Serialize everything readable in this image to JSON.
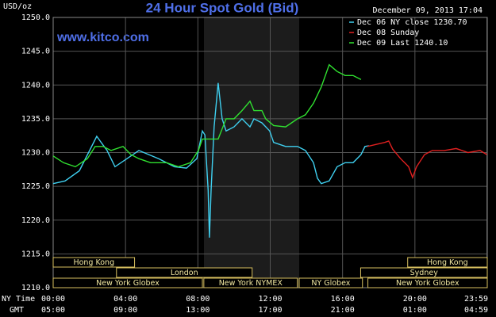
{
  "chart_data": {
    "type": "line",
    "title": "24 Hour Spot Gold (Bid)",
    "y_label": "USD/oz",
    "date": "December 09, 2013 17:04",
    "watermark": "www.kitco.com",
    "x_label": "NY Time",
    "x2_label": "GMT",
    "xlim": [
      0,
      24
    ],
    "xticks": [
      {
        "value": 0,
        "label": "00:00"
      },
      {
        "value": 4,
        "label": "04:00"
      },
      {
        "value": 8,
        "label": "08:00"
      },
      {
        "value": 12,
        "label": "12:00"
      },
      {
        "value": 16,
        "label": "16:00"
      },
      {
        "value": 20,
        "label": "20:00"
      },
      {
        "value": 23.98,
        "label": "23:59"
      }
    ],
    "x2ticks": [
      {
        "value": 0,
        "label": "05:00"
      },
      {
        "value": 4,
        "label": "09:00"
      },
      {
        "value": 8,
        "label": "13:00"
      },
      {
        "value": 12,
        "label": "17:00"
      },
      {
        "value": 16,
        "label": "21:00"
      },
      {
        "value": 20,
        "label": "01:00"
      },
      {
        "value": 23.98,
        "label": "04:59"
      }
    ],
    "ylim": [
      1210,
      1250
    ],
    "yticks": [
      {
        "value": 1210,
        "label": "1210.0"
      },
      {
        "value": 1215,
        "label": "1215.0"
      },
      {
        "value": 1220,
        "label": "1220.0"
      },
      {
        "value": 1225,
        "label": "1225.0"
      },
      {
        "value": 1230,
        "label": "1230.0"
      },
      {
        "value": 1235,
        "label": "1235.0"
      },
      {
        "value": 1240,
        "label": "1240.0"
      },
      {
        "value": 1245,
        "label": "1245.0"
      },
      {
        "value": 1250,
        "label": "1250.0"
      }
    ],
    "grid": true,
    "series": [
      {
        "name": "Dec 06 NY close 1230.70",
        "color": "#3fd0f0",
        "x": [
          0,
          0.66,
          1.45,
          2.41,
          2.98,
          3.42,
          4.08,
          4.74,
          5.83,
          6.71,
          7.37,
          7.94,
          8.25,
          8.39,
          8.57,
          8.64,
          8.73,
          8.9,
          9.12,
          9.34,
          9.56,
          10,
          10.44,
          10.88,
          11.1,
          11.54,
          11.97,
          12.19,
          12.85,
          13.51,
          13.95,
          14.39,
          14.61,
          14.82,
          15.26,
          15.7,
          16.14,
          16.58,
          17.02,
          17.24,
          17.46
        ],
        "values": [
          1225.4,
          1225.8,
          1227.3,
          1232.4,
          1230.3,
          1227.9,
          1229.1,
          1230.3,
          1229.1,
          1227.9,
          1227.7,
          1229.1,
          1233.2,
          1232.6,
          1224.4,
          1217.4,
          1224.4,
          1233.8,
          1240.3,
          1235.0,
          1233.2,
          1233.8,
          1235.0,
          1233.8,
          1235.0,
          1234.4,
          1233.2,
          1231.5,
          1230.9,
          1230.9,
          1230.3,
          1228.5,
          1226.2,
          1225.4,
          1225.8,
          1227.9,
          1228.5,
          1228.5,
          1229.7,
          1230.9,
          1231.0
        ]
      },
      {
        "name": "Dec 08 Sunday",
        "color": "#e02020",
        "x": [
          17.37,
          18.33,
          18.55,
          18.77,
          19.21,
          19.65,
          19.87,
          20.09,
          20.53,
          20.96,
          21.62,
          22.28,
          22.94,
          23.6,
          23.98
        ],
        "values": [
          1230.9,
          1231.5,
          1231.7,
          1230.5,
          1229.1,
          1227.9,
          1226.3,
          1227.9,
          1229.7,
          1230.3,
          1230.3,
          1230.6,
          1230.0,
          1230.3,
          1229.7
        ]
      },
      {
        "name": "Dec 09 Last 1240.10",
        "color": "#30e030",
        "x": [
          0,
          0.57,
          1.23,
          1.89,
          2.32,
          2.76,
          3.2,
          3.86,
          4.3,
          4.74,
          5.39,
          6.27,
          6.93,
          7.59,
          8.03,
          8.25,
          8.68,
          9.12,
          9.56,
          10,
          10.44,
          10.88,
          11.1,
          11.54,
          11.75,
          12.19,
          12.85,
          13.51,
          13.95,
          14.39,
          14.82,
          15.26,
          15.7,
          16.14,
          16.58,
          17.02
        ],
        "values": [
          1229.5,
          1228.5,
          1227.9,
          1229.1,
          1230.9,
          1230.9,
          1230.3,
          1230.9,
          1229.7,
          1229.1,
          1228.5,
          1228.5,
          1227.9,
          1228.5,
          1230.3,
          1232.0,
          1232.0,
          1232.0,
          1235.0,
          1235.0,
          1236.2,
          1237.6,
          1236.2,
          1236.2,
          1235.0,
          1234.0,
          1233.8,
          1235.0,
          1235.6,
          1237.3,
          1239.7,
          1243.0,
          1242.0,
          1241.4,
          1241.4,
          1240.8
        ]
      }
    ],
    "sessions": [
      [
        {
          "label": "Hong Kong",
          "start": 0,
          "end": 4.5
        },
        {
          "label": "Hong Kong",
          "start": 19.6,
          "end": 24
        }
      ],
      [
        {
          "label": "London",
          "start": 3.5,
          "end": 11
        },
        {
          "label": "Sydney",
          "start": 17,
          "end": 24
        }
      ],
      [
        {
          "label": "New York Globex",
          "start": 0,
          "end": 8.25
        },
        {
          "label": "New York NYMEX",
          "start": 8.33,
          "end": 13.5
        },
        {
          "label": "NY Globex",
          "start": 13.6,
          "end": 17.1
        },
        {
          "label": "New York Globex",
          "start": 17.4,
          "end": 24
        }
      ]
    ]
  }
}
